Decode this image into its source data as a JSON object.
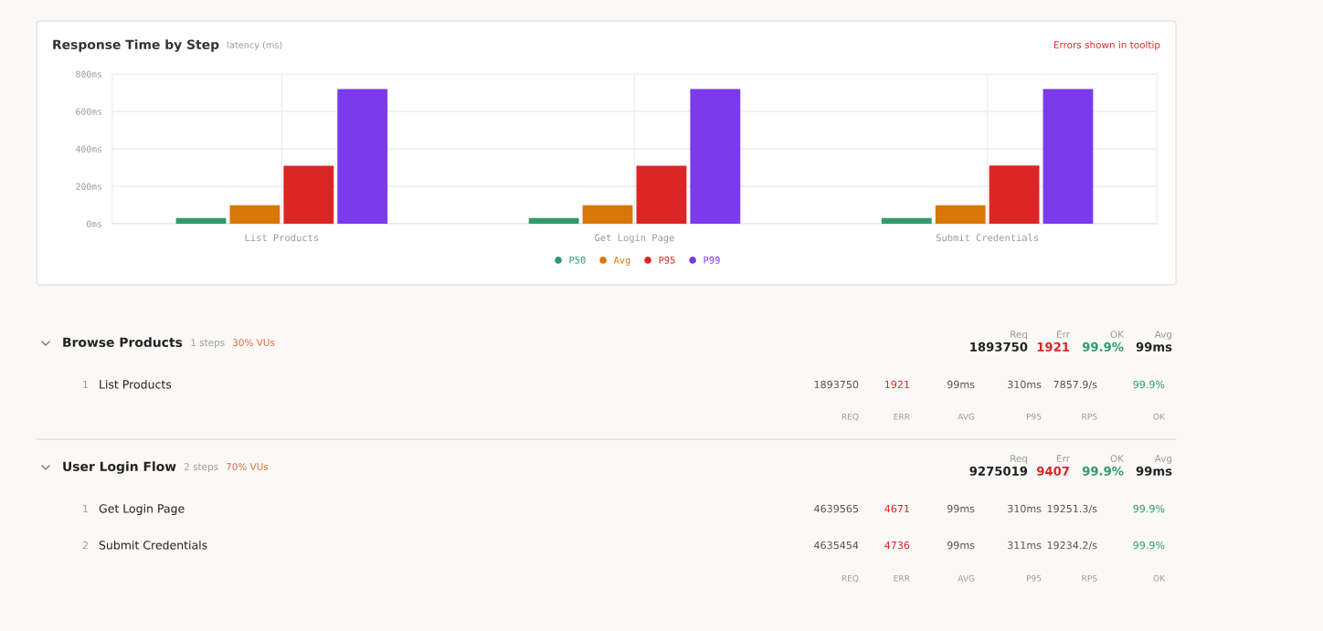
{
  "chart_data": [
    {
      "type": "bar",
      "title": "Response Time by Step",
      "subtitle": "latency (ms)",
      "categories": [
        "List Products",
        "Get Login Page",
        "Submit Credentials"
      ],
      "series": [
        {
          "name": "P50",
          "color": "#2f9a6c",
          "values": [
            30,
            30,
            30
          ]
        },
        {
          "name": "Avg",
          "color": "#d97706",
          "values": [
            99,
            99,
            99
          ]
        },
        {
          "name": "P95",
          "color": "#dc2626",
          "values": [
            310,
            310,
            311
          ]
        },
        {
          "name": "P99",
          "color": "#7c3aed",
          "values": [
            720,
            720,
            720
          ]
        }
      ],
      "ylim": [
        0,
        800
      ],
      "yticks": [
        {
          "value": 0,
          "label": "0ms"
        },
        {
          "value": 200,
          "label": "200ms"
        },
        {
          "value": 400,
          "label": "400ms"
        },
        {
          "value": 600,
          "label": "600ms"
        },
        {
          "value": 800,
          "label": "800ms"
        }
      ],
      "grid": true,
      "legend": "bottom",
      "marker": "circle",
      "annotations": [
        "Errors shown in tooltip"
      ]
    },
    {
      "type": "other",
      "annotations": [
        "Browse Products",
        "1 steps",
        "30% VUs",
        "Req",
        "Err",
        "OK",
        "Avg",
        "1893750",
        "1921",
        "99.9%",
        "99ms",
        "1",
        "List Products",
        "1893750",
        "1921",
        "99ms",
        "310ms",
        "7857.9/s",
        "99.9%",
        "REQ",
        "ERR",
        "AVG",
        "P95",
        "RPS",
        "OK",
        "User Login Flow",
        "2 steps",
        "70% VUs",
        "Req",
        "Err",
        "OK",
        "Avg",
        "9275019",
        "9407",
        "99.9%",
        "99ms",
        "1",
        "Get Login Page",
        "4639565",
        "4671",
        "99ms",
        "310ms",
        "19251.3/s",
        "99.9%",
        "2",
        "Submit Credentials",
        "4635454",
        "4736",
        "99ms",
        "311ms",
        "19234.2/s",
        "99.9%",
        "REQ",
        "ERR",
        "AVG",
        "P95",
        "RPS",
        "OK"
      ]
    }
  ]
}
